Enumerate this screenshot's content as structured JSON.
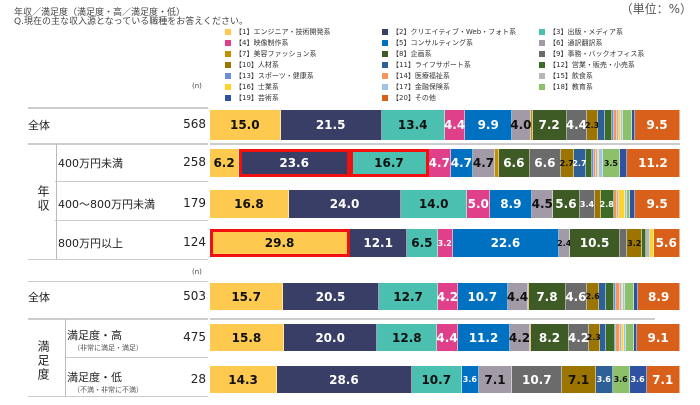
{
  "title": "年収／満足度（満足度・高／満足度・低）",
  "question": "Q.現在の主な収入源となっている職種をお答えください。",
  "unit": "（単位：%）",
  "n_label": "(n)",
  "chart_data": {
    "type": "bar",
    "orientation": "horizontal",
    "stacked": true,
    "xlim": [
      0,
      100
    ],
    "series": [
      {
        "name": "【1】エンジニア・技術開発系",
        "color": "#FDC94E"
      },
      {
        "name": "【2】クリエイティブ・Web・フォト系",
        "color": "#383E66"
      },
      {
        "name": "【3】出版・メディア系",
        "color": "#4BC0B0"
      },
      {
        "name": "【4】映像制作系",
        "color": "#E0408A"
      },
      {
        "name": "【5】コンサルティング系",
        "color": "#0070C0"
      },
      {
        "name": "【6】通訳翻訳系",
        "color": "#A39AA8"
      },
      {
        "name": "【7】美容ファッション系",
        "color": "#C09000"
      },
      {
        "name": "【8】企画系",
        "color": "#3E5A25"
      },
      {
        "name": "【9】事務・バックオフィス系",
        "color": "#6B6B6B"
      },
      {
        "name": "【10】人材系",
        "color": "#9C7400"
      },
      {
        "name": "【11】ライフサポート系",
        "color": "#2E5F97"
      },
      {
        "name": "【12】営業・販売・小売系",
        "color": "#3C6B28"
      },
      {
        "name": "【13】スポーツ・健康系",
        "color": "#6A8FD8"
      },
      {
        "name": "【14】医療福祉系",
        "color": "#F4955A"
      },
      {
        "name": "【15】飲食系",
        "color": "#B7B7B7"
      },
      {
        "name": "【16】士業系",
        "color": "#FFD32A"
      },
      {
        "name": "【17】金融保険系",
        "color": "#9DC3E6"
      },
      {
        "name": "【18】教育系",
        "color": "#8DC06A"
      },
      {
        "name": "【19】芸術系",
        "color": "#2F52A0"
      },
      {
        "name": "【20】その他",
        "color": "#D9601A"
      }
    ],
    "groups": [
      {
        "rows": [
          {
            "label": "全体",
            "n": "568",
            "values": [
              15.0,
              21.5,
              13.4,
              4.4,
              9.9,
              4.0,
              0.4,
              7.2,
              4.4,
              2.3,
              1.4,
              1.6,
              0.5,
              0.5,
              0.5,
              0.4,
              0.4,
              1.9,
              0.7,
              9.5
            ]
          }
        ]
      },
      {
        "group_label": "年収",
        "rows": [
          {
            "label": "400万円未満",
            "n": "258",
            "values": [
              6.2,
              23.6,
              16.7,
              4.7,
              4.7,
              4.7,
              0.8,
              6.6,
              6.6,
              2.7,
              2.7,
              1.2,
              0.4,
              0.4,
              0.4,
              0.4,
              0.8,
              3.5,
              1.6,
              11.2
            ],
            "highlight": [
              1,
              2
            ]
          },
          {
            "label": "400～800万円未満",
            "n": "179",
            "values": [
              16.8,
              24.0,
              14.0,
              5.0,
              8.9,
              4.5,
              0.0,
              5.6,
              3.4,
              1.1,
              0.0,
              2.8,
              0.0,
              0.6,
              0.6,
              1.1,
              0.6,
              0.6,
              1.1,
              9.5
            ]
          },
          {
            "label": "800万円以上",
            "n": "124",
            "values": [
              29.8,
              12.1,
              6.5,
              3.2,
              22.6,
              2.4,
              0.0,
              10.5,
              1.6,
              3.2,
              0.0,
              0.8,
              0.0,
              0.0,
              0.8,
              0.8,
              0.0,
              0.0,
              0.0,
              5.6
            ],
            "highlight": [
              0
            ]
          }
        ]
      },
      {
        "rows": [
          {
            "label": "全体",
            "n": "503",
            "values": [
              15.7,
              20.5,
              12.7,
              4.2,
              10.7,
              4.4,
              0.2,
              7.8,
              4.6,
              2.6,
              1.4,
              1.8,
              0.4,
              0.8,
              0.4,
              0.4,
              0.4,
              1.8,
              1.0,
              8.9
            ]
          }
        ]
      },
      {
        "group_label": "満足度",
        "rows": [
          {
            "label": "満足度・高",
            "sublabel": "（非常に満足・満足）",
            "n": "475",
            "values": [
              15.8,
              20.0,
              12.8,
              4.4,
              11.2,
              4.2,
              0.2,
              8.2,
              4.2,
              2.3,
              1.3,
              1.9,
              0.4,
              0.8,
              0.4,
              0.4,
              0.4,
              1.7,
              0.8,
              9.1
            ]
          },
          {
            "label": "満足度・低",
            "sublabel": "（不満・非常に不満）",
            "n": "28",
            "values": [
              14.3,
              28.6,
              10.7,
              0.0,
              3.6,
              7.1,
              0.0,
              0.0,
              10.7,
              7.1,
              3.6,
              0.0,
              0.0,
              0.0,
              0.0,
              0.0,
              0.0,
              3.6,
              3.6,
              7.1
            ]
          }
        ]
      }
    ]
  }
}
